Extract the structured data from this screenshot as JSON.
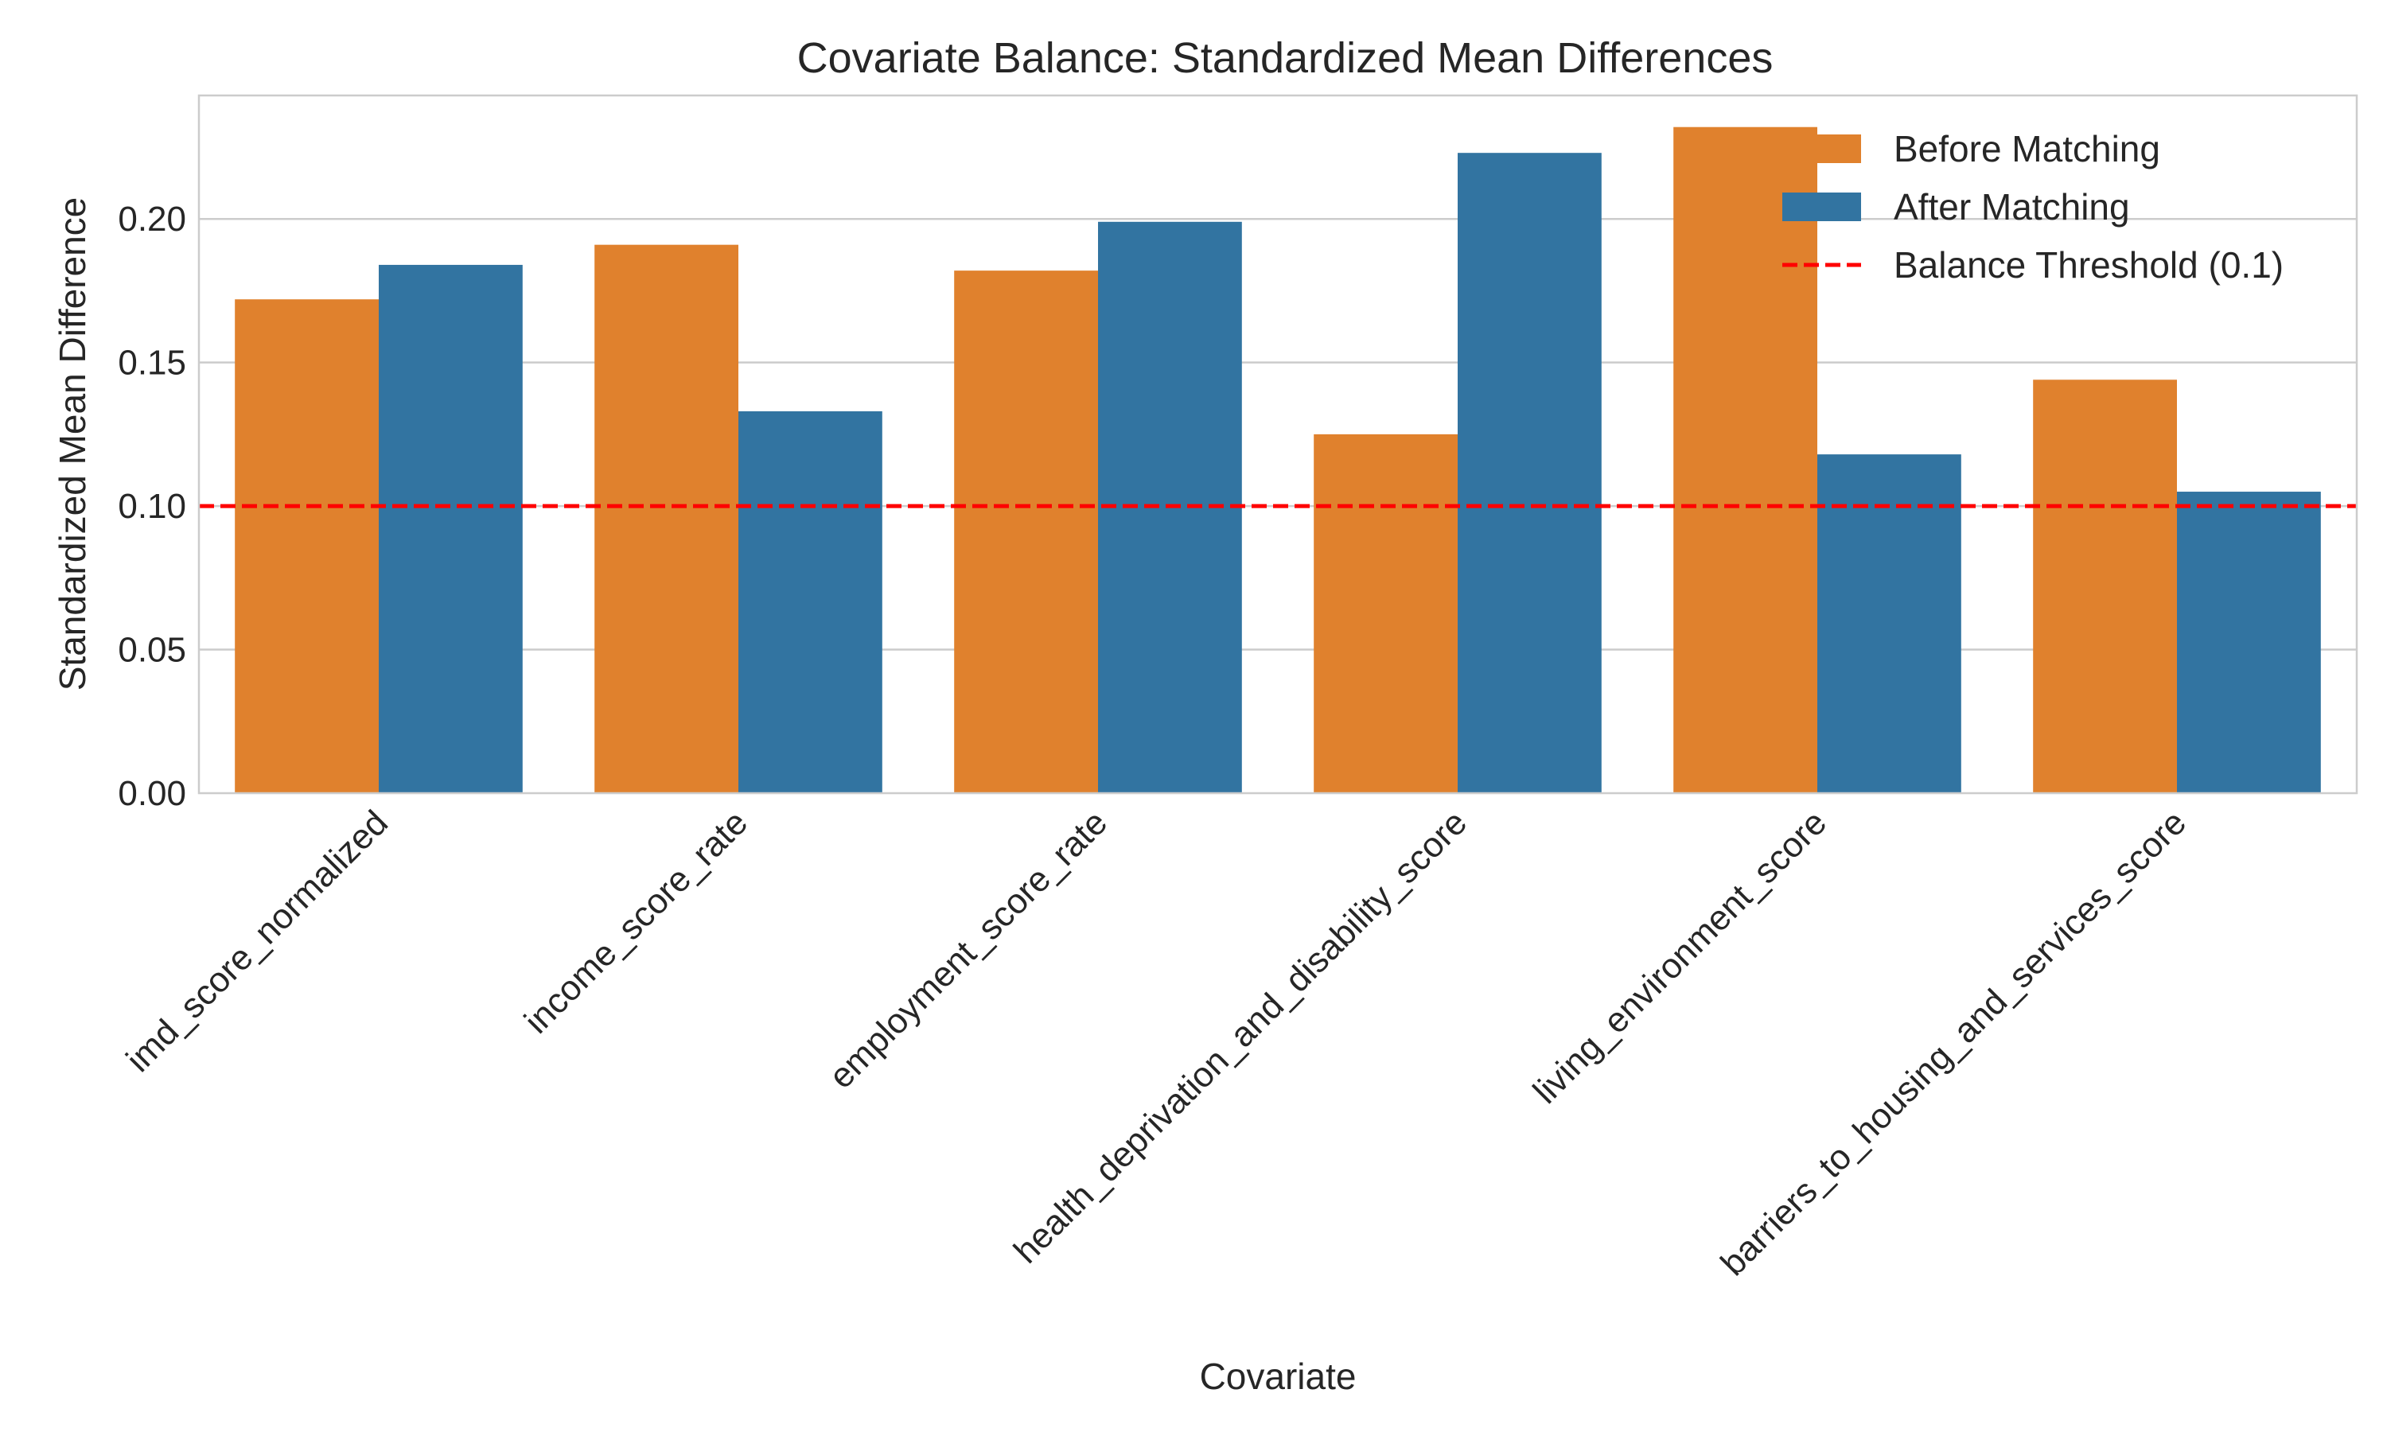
{
  "chart_data": {
    "type": "bar",
    "title": "Covariate Balance: Standardized Mean Differences",
    "xlabel": "Covariate",
    "ylabel": "Standardized Mean Difference",
    "ylim": [
      0,
      0.243
    ],
    "yticks": [
      0.0,
      0.05,
      0.1,
      0.15,
      0.2
    ],
    "ytick_labels": [
      "0.00",
      "0.05",
      "0.10",
      "0.15",
      "0.20"
    ],
    "categories": [
      "imd_score_normalized",
      "income_score_rate",
      "employment_score_rate",
      "health_deprivation_and_disability_score",
      "living_environment_score",
      "barriers_to_housing_and_services_score"
    ],
    "series": [
      {
        "name": "Before Matching",
        "color": "#e0812d",
        "values": [
          0.172,
          0.191,
          0.182,
          0.125,
          0.232,
          0.144
        ]
      },
      {
        "name": "After Matching",
        "color": "#3274a1",
        "values": [
          0.184,
          0.133,
          0.199,
          0.223,
          0.118,
          0.105
        ]
      }
    ],
    "reference_line": {
      "label": "Balance Threshold (0.1)",
      "value": 0.1,
      "color": "#ff0000",
      "style": "dashed"
    },
    "grid": "horizontal",
    "legend": "top-right"
  }
}
